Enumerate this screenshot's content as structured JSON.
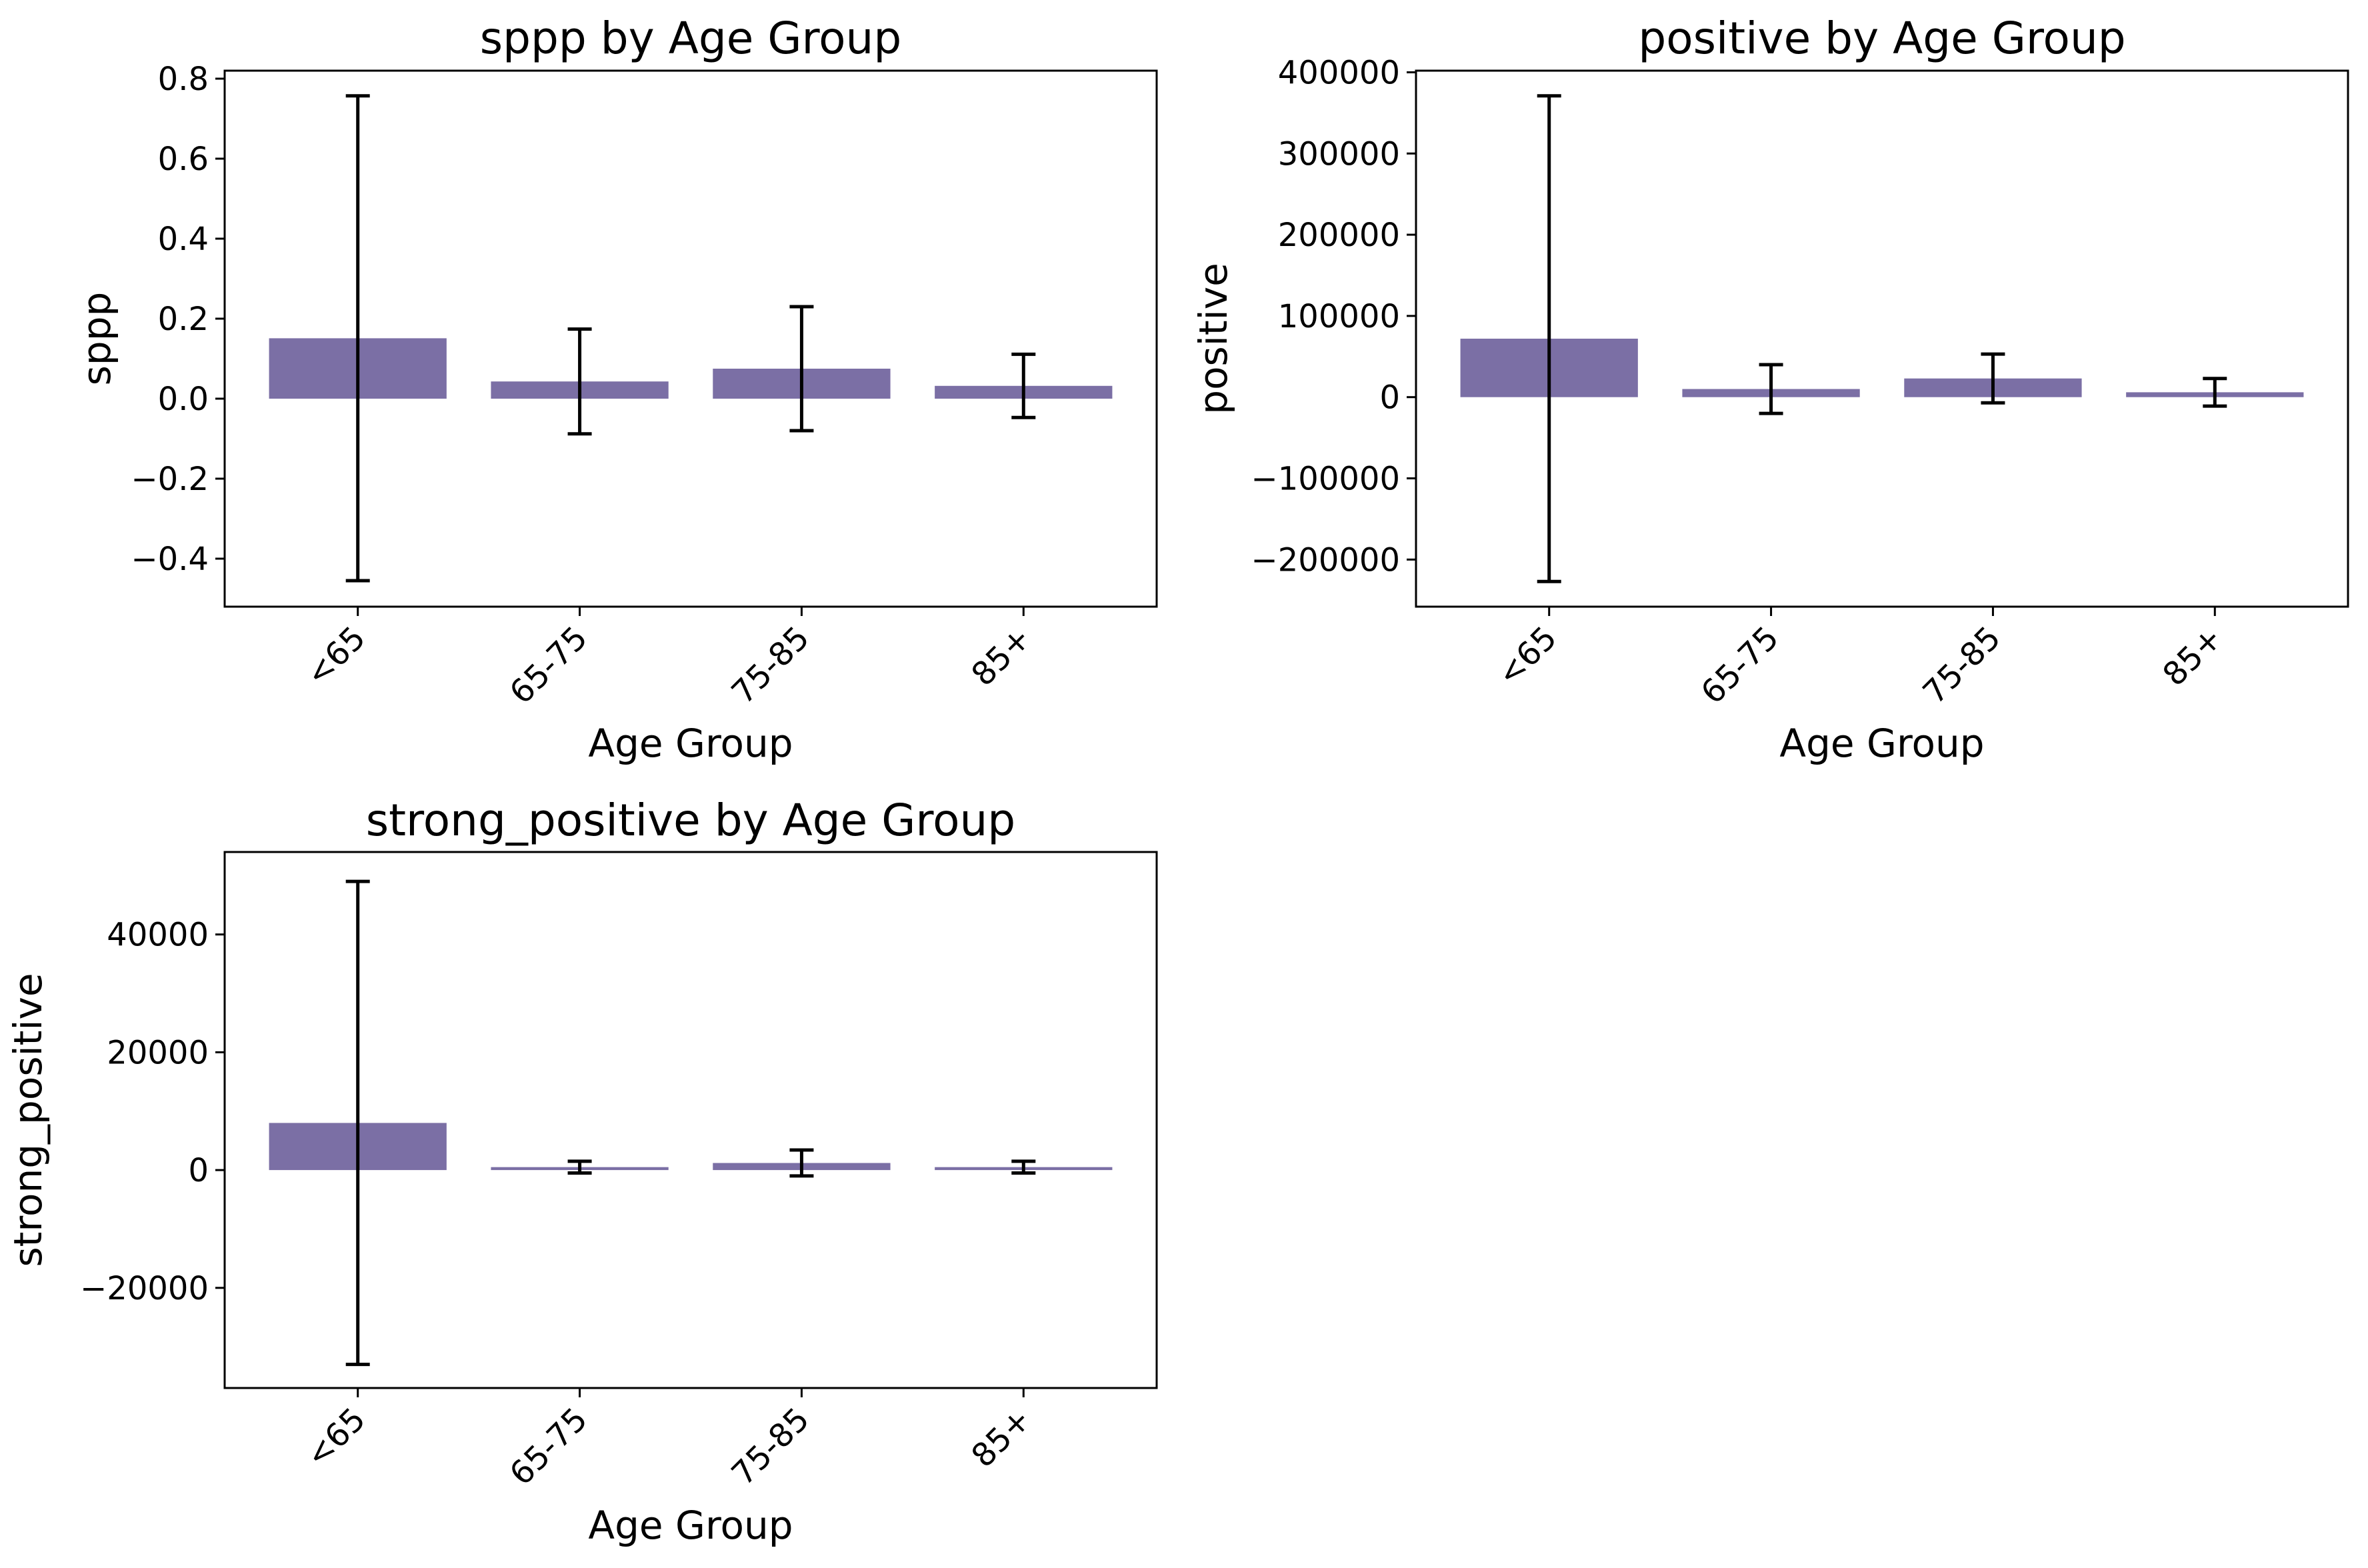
{
  "chart_data": [
    {
      "type": "bar",
      "title": "sppp by Age Group",
      "xlabel": "Age Group",
      "ylabel": "sppp",
      "categories": [
        "<65",
        "65-75",
        "75-85",
        "85+"
      ],
      "values": [
        0.151,
        0.043,
        0.075,
        0.032
      ],
      "error_low": [
        -0.455,
        -0.088,
        -0.08,
        -0.047
      ],
      "error_high": [
        0.757,
        0.174,
        0.23,
        0.111
      ],
      "ylim": [
        -0.52,
        0.82
      ],
      "yticks": [
        -0.4,
        -0.2,
        0.0,
        0.2,
        0.4,
        0.6,
        0.8
      ],
      "ytick_labels": [
        "−0.4",
        "−0.2",
        "0.0",
        "0.2",
        "0.4",
        "0.6",
        "0.8"
      ],
      "bar_color": "#7b6fa5",
      "error_color": "#000000",
      "grid": false,
      "legend": false
    },
    {
      "type": "bar",
      "title": "positive by Age Group",
      "xlabel": "Age Group",
      "ylabel": "positive",
      "categories": [
        "<65",
        "65-75",
        "75-85",
        "85+"
      ],
      "values": [
        72000,
        10000,
        23000,
        6000
      ],
      "error_low": [
        -227000,
        -20000,
        -7000,
        -11000
      ],
      "error_high": [
        371000,
        40000,
        53000,
        23000
      ],
      "ylim": [
        -258000,
        402000
      ],
      "yticks": [
        -200000,
        -100000,
        0,
        100000,
        200000,
        300000,
        400000
      ],
      "ytick_labels": [
        "−200000",
        "−100000",
        "0",
        "100000",
        "200000",
        "300000",
        "400000"
      ],
      "bar_color": "#7b6fa5",
      "error_color": "#000000",
      "grid": false,
      "legend": false
    },
    {
      "type": "bar",
      "title": "strong_positive by Age Group",
      "xlabel": "Age Group",
      "ylabel": "strong_positive",
      "categories": [
        "<65",
        "65-75",
        "75-85",
        "85+"
      ],
      "values": [
        8000,
        500,
        1200,
        500
      ],
      "error_low": [
        -33000,
        -500,
        -1000,
        -500
      ],
      "error_high": [
        49000,
        1500,
        3400,
        1500
      ],
      "ylim": [
        -37000,
        54000
      ],
      "yticks": [
        -20000,
        0,
        20000,
        40000
      ],
      "ytick_labels": [
        "−20000",
        "0",
        "20000",
        "40000"
      ],
      "bar_color": "#7b6fa5",
      "error_color": "#000000",
      "grid": false,
      "legend": false
    }
  ]
}
